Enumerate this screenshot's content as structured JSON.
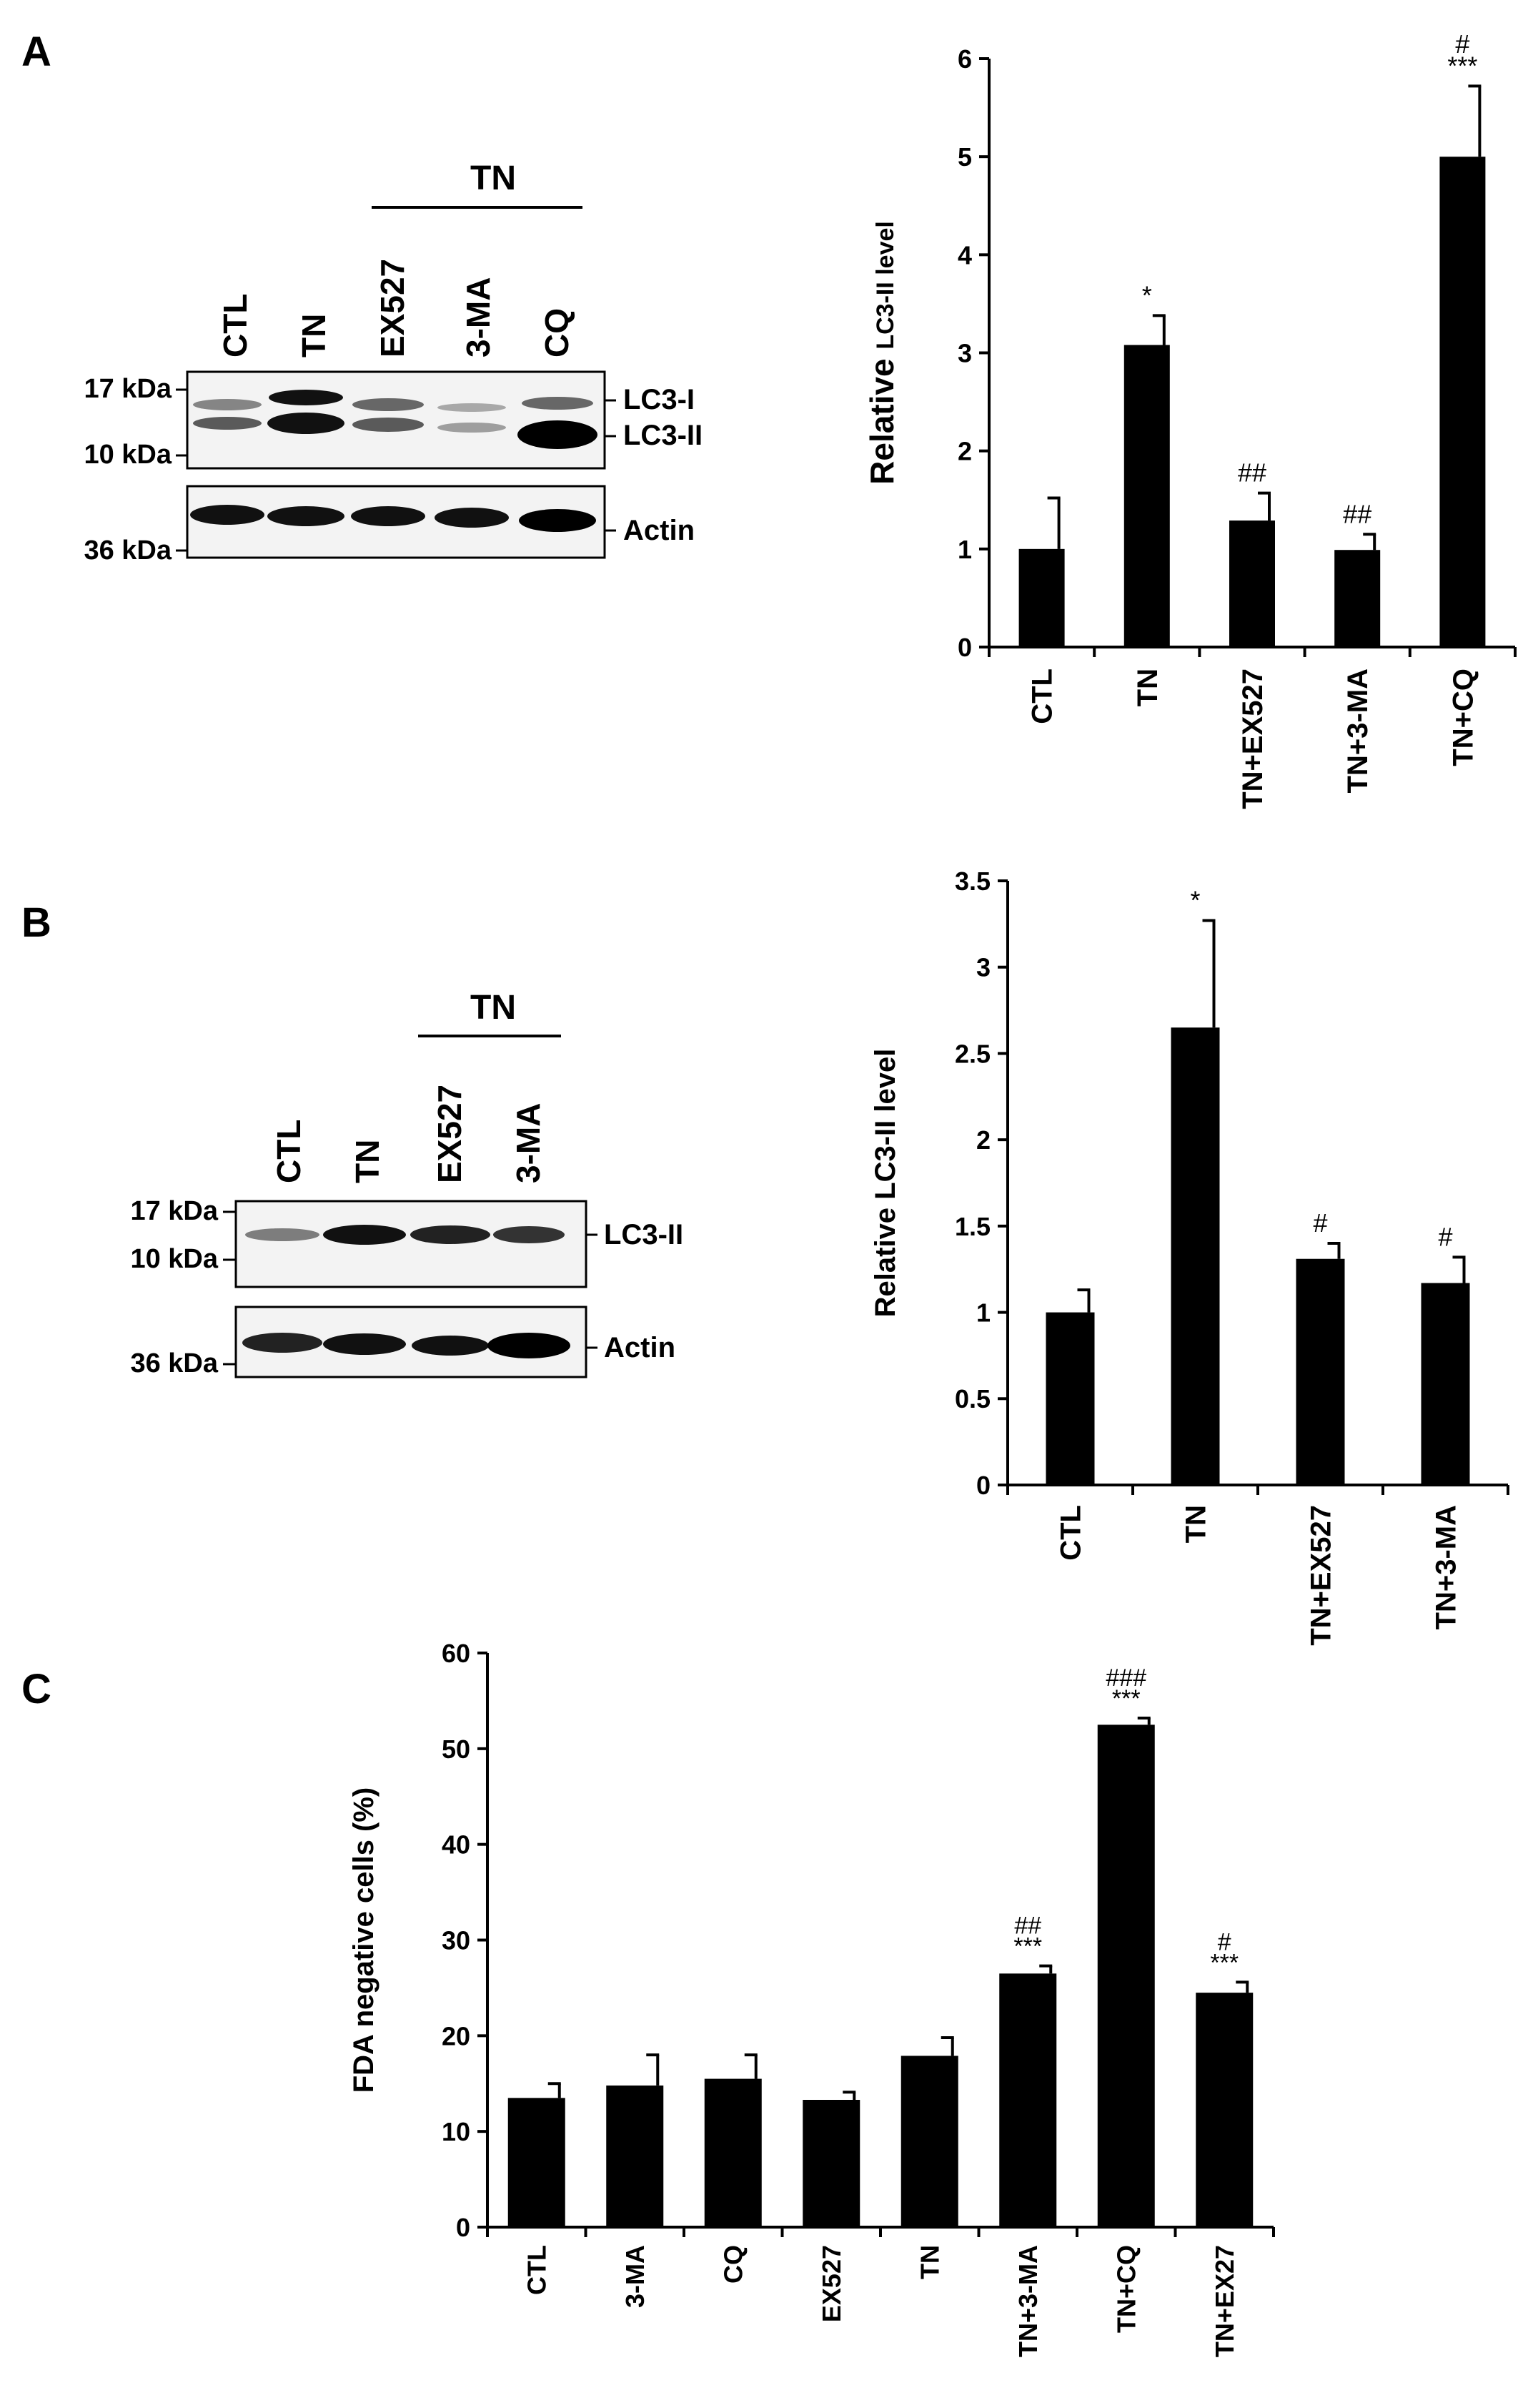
{
  "panels": {
    "a": {
      "letter": "A"
    },
    "b": {
      "letter": "B"
    },
    "c": {
      "letter": "C"
    }
  },
  "blots": {
    "a": {
      "group_label": "TN",
      "lanes": [
        "CTL",
        "TN",
        "EX527",
        "3-MA",
        "CQ"
      ],
      "markers": [
        "17 kDa",
        "10 kDa",
        "36 kDa"
      ],
      "bands": [
        "LC3-I",
        "LC3-II",
        "Actin"
      ]
    },
    "b": {
      "group_label": "TN",
      "lanes": [
        "CTL",
        "TN",
        "EX527",
        "3-MA"
      ],
      "markers": [
        "17 kDa",
        "10 kDa",
        "36 kDa"
      ],
      "bands": [
        "LC3-II",
        "Actin"
      ]
    }
  },
  "chart_data": [
    {
      "type": "bar",
      "ylabel_main": "Relative",
      "ylabel_small": "LC3-II level",
      "categories": [
        "CTL",
        "TN",
        "TN+EX527",
        "TN+3-MA",
        "TN+CQ"
      ],
      "values": [
        1.0,
        3.08,
        1.29,
        0.99,
        5.0
      ],
      "errors": [
        0.52,
        0.3,
        0.28,
        0.16,
        0.72
      ],
      "annotations": [
        [
          "",
          ""
        ],
        [
          "",
          "*"
        ],
        [
          "",
          "##"
        ],
        [
          "",
          "##"
        ],
        [
          "#",
          "***"
        ]
      ],
      "yticks": [
        "0",
        "1",
        "2",
        "3",
        "4",
        "5",
        "6"
      ],
      "ylim": [
        0,
        6
      ]
    },
    {
      "type": "bar",
      "ylabel": "Relative LC3-II level",
      "categories": [
        "CTL",
        "TN",
        "TN+EX527",
        "TN+3-MA"
      ],
      "values": [
        1.0,
        2.65,
        1.31,
        1.17
      ],
      "errors": [
        0.13,
        0.62,
        0.09,
        0.15
      ],
      "annotations": [
        [
          "",
          ""
        ],
        [
          "",
          "*"
        ],
        [
          "",
          "#"
        ],
        [
          "",
          "#"
        ]
      ],
      "yticks": [
        "0",
        "0.5",
        "1",
        "1.5",
        "2",
        "2.5",
        "3",
        "3.5"
      ],
      "ylim": [
        0,
        3.5
      ]
    },
    {
      "type": "bar",
      "ylabel": "FDA negative cells (%)",
      "categories": [
        "CTL",
        "3-MA",
        "CQ",
        "EX527",
        "TN",
        "TN+3-MA",
        "TN+CQ",
        "TN+EX27"
      ],
      "values": [
        13.5,
        14.8,
        15.5,
        13.3,
        17.9,
        26.5,
        52.5,
        24.5
      ],
      "errors": [
        1.5,
        3.2,
        2.5,
        0.8,
        1.9,
        0.8,
        0.7,
        1.1
      ],
      "annotations": [
        [
          "",
          ""
        ],
        [
          "",
          ""
        ],
        [
          "",
          ""
        ],
        [
          "",
          ""
        ],
        [
          "",
          ""
        ],
        [
          "##",
          "***"
        ],
        [
          "###",
          "***"
        ],
        [
          "#",
          "***"
        ]
      ],
      "yticks": [
        "0",
        "10",
        "20",
        "30",
        "40",
        "50",
        "60"
      ],
      "ylim": [
        0,
        60
      ]
    }
  ]
}
